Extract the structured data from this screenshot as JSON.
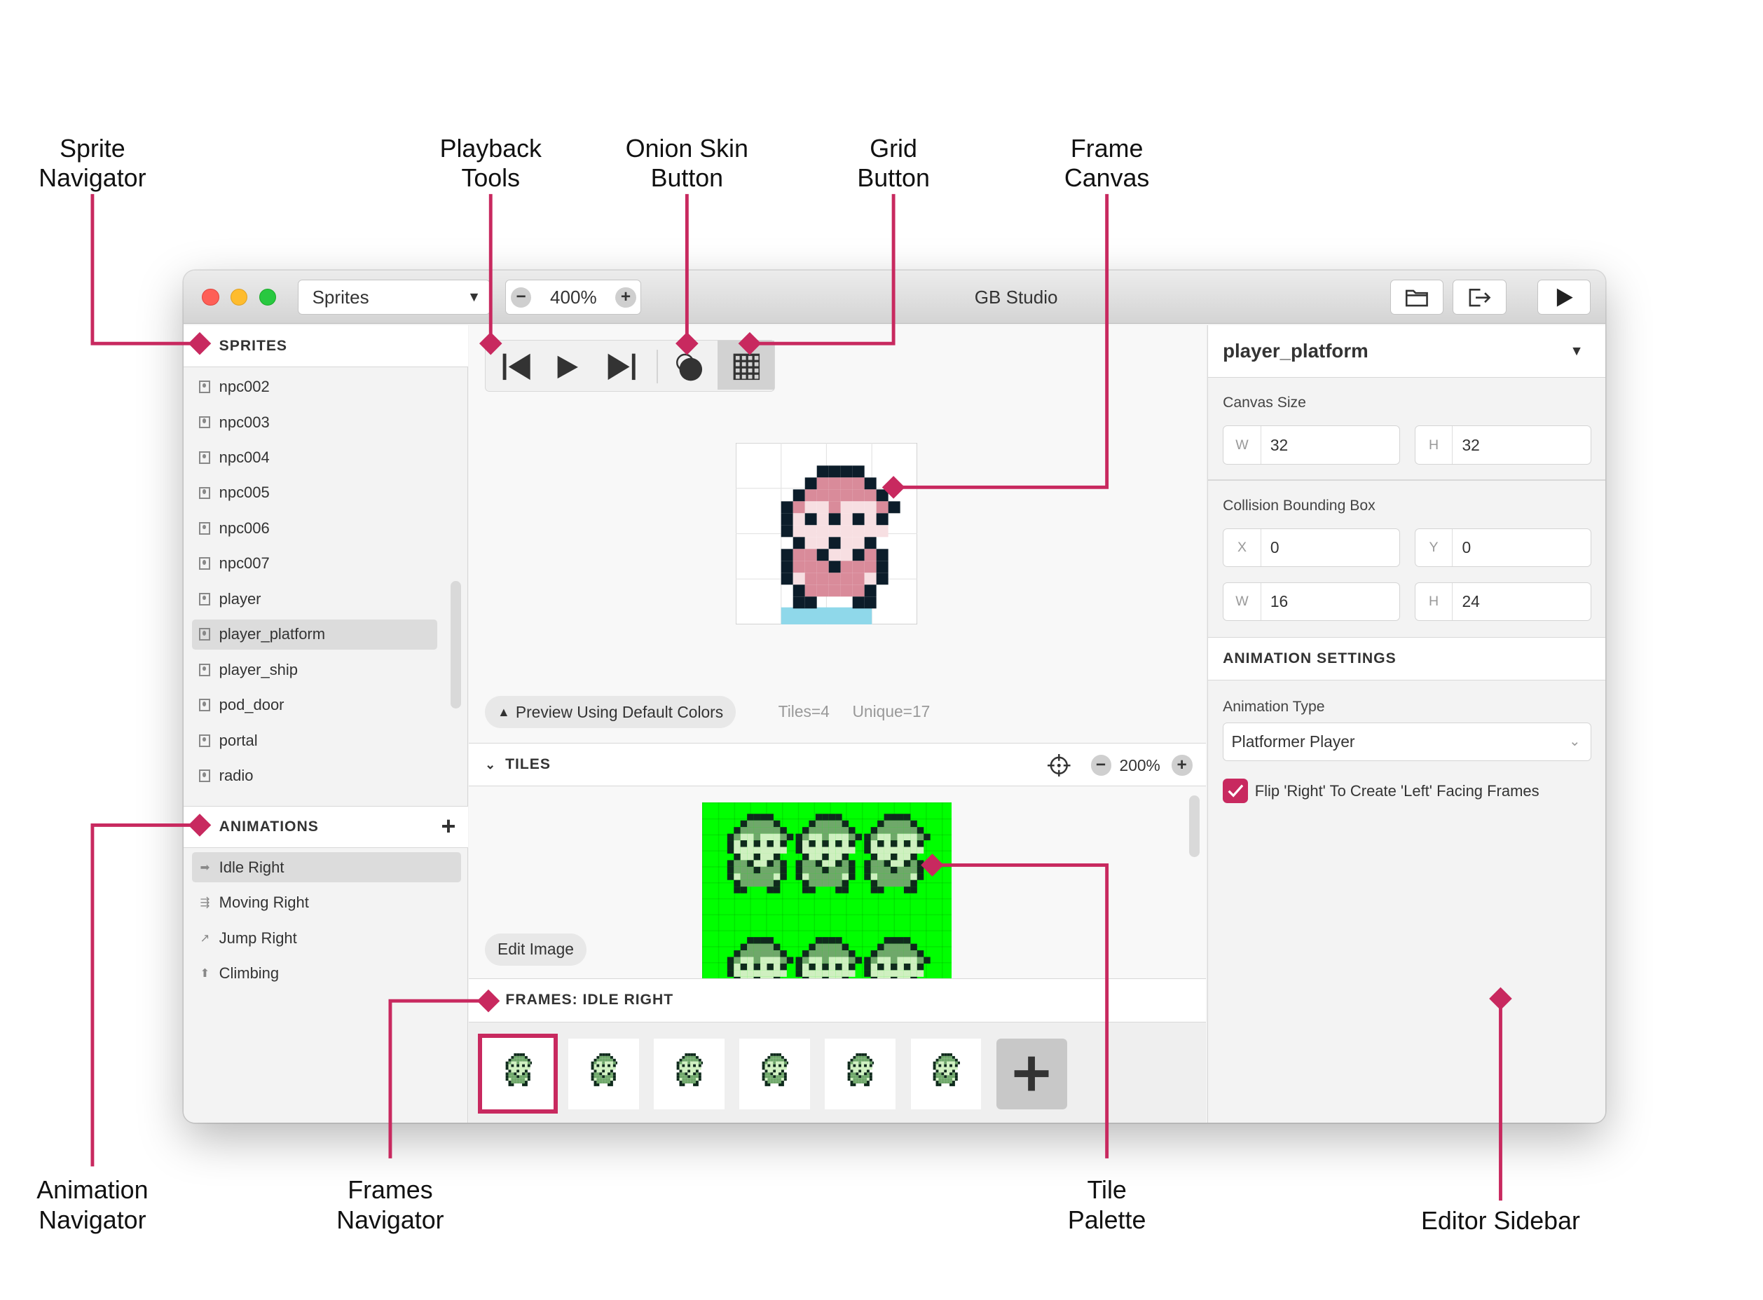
{
  "window": {
    "title": "GB Studio",
    "section_select": "Sprites",
    "zoom": "400%"
  },
  "toolbar": {
    "buttons": [
      "folder-icon",
      "export-icon",
      "play-icon"
    ]
  },
  "sprites": {
    "header": "SPRITES",
    "items": [
      "npc002",
      "npc003",
      "npc004",
      "npc005",
      "npc006",
      "npc007",
      "player",
      "player_platform",
      "player_ship",
      "pod_door",
      "portal",
      "radio"
    ],
    "selected": "player_platform"
  },
  "animations": {
    "header": "ANIMATIONS",
    "items": [
      {
        "label": "Idle Right",
        "icon": "arrow-right-icon"
      },
      {
        "label": "Moving Right",
        "icon": "moving-arrow-icon"
      },
      {
        "label": "Jump Right",
        "icon": "jump-arrow-icon"
      },
      {
        "label": "Climbing",
        "icon": "arrow-up-icon"
      }
    ],
    "selected": "Idle Right"
  },
  "editor": {
    "preview_button": "Preview Using Default Colors",
    "tiles_count": "Tiles=4",
    "unique_count": "Unique=17",
    "tiles_header": "TILES",
    "tiles_zoom": "200%",
    "edit_image": "Edit Image",
    "frames_header": "FRAMES: IDLE RIGHT",
    "frame_count": 6,
    "selected_frame": 1
  },
  "sidebar": {
    "sprite_name": "player_platform",
    "canvas_size_label": "Canvas Size",
    "canvas_w": "32",
    "canvas_h": "32",
    "collision_label": "Collision Bounding Box",
    "coll_x": "0",
    "coll_y": "0",
    "coll_w": "16",
    "coll_h": "24",
    "anim_settings_header": "ANIMATION SETTINGS",
    "anim_type_label": "Animation Type",
    "anim_type": "Platformer Player",
    "flip_label": "Flip 'Right' To Create 'Left' Facing Frames",
    "flip_checked": true,
    "prefix": {
      "w": "W",
      "h": "H",
      "x": "X",
      "y": "Y"
    }
  },
  "annotations": {
    "sprite_navigator": "Sprite\nNavigator",
    "playback_tools": "Playback\nTools",
    "onion_skin": "Onion Skin\nButton",
    "grid_button": "Grid\nButton",
    "frame_canvas": "Frame\nCanvas",
    "animation_navigator": "Animation\nNavigator",
    "frames_navigator": "Frames\nNavigator",
    "tile_palette": "Tile\nPalette",
    "editor_sidebar": "Editor Sidebar"
  },
  "colors": {
    "accent": "#c8295f",
    "tile_bg": "#00ff00"
  }
}
